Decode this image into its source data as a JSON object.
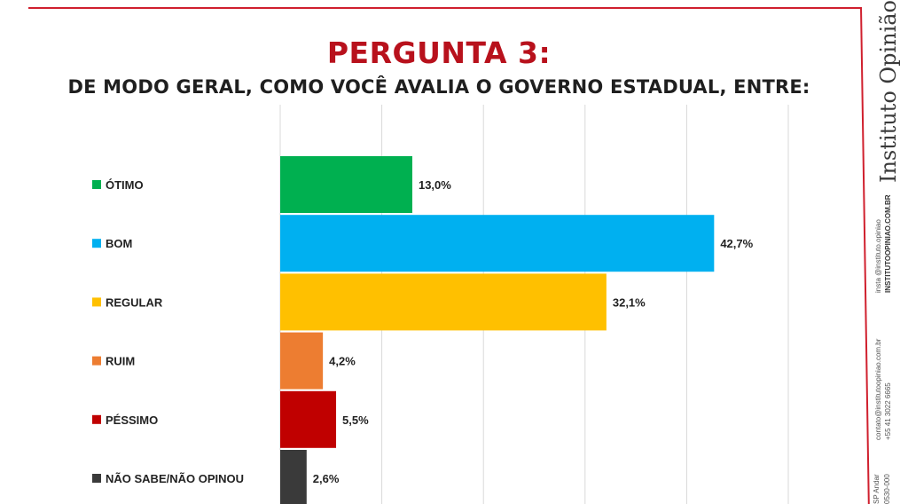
{
  "title": "PERGUNTA 3:",
  "subtitle": "DE MODO GERAL, COMO VOCÊ AVALIA O GOVERNO ESTADUAL, ENTRE:",
  "sidebar": {
    "brand": "Instituto Opinião",
    "instagram": "insta @instituto.opiniao",
    "site": "INSTITUTOOPINIAO.COM.BR",
    "email": "contato@institutoopiniao.com.br",
    "phone": "+55 41 3022 6665",
    "address_line1": "SP Andar",
    "address_line2": "0530-000"
  },
  "chart_data": {
    "type": "bar",
    "orientation": "horizontal",
    "title": "PERGUNTA 3:",
    "subtitle": "DE MODO GERAL, COMO VOCÊ AVALIA O GOVERNO ESTADUAL, ENTRE:",
    "categories": [
      "ÓTIMO",
      "BOM",
      "REGULAR",
      "RUIM",
      "PÉSSIMO",
      "NÃO SABE/NÃO OPINOU"
    ],
    "values": [
      13.0,
      42.7,
      32.1,
      4.2,
      5.5,
      2.6
    ],
    "value_labels": [
      "13,0%",
      "42,7%",
      "32,1%",
      "4,2%",
      "5,5%",
      "2,6%"
    ],
    "colors": [
      "#00b050",
      "#00b0f0",
      "#ffc000",
      "#ed7d31",
      "#c00000",
      "#3a3a3a"
    ],
    "xlim": [
      0,
      50
    ],
    "grid": true,
    "legend": "left"
  }
}
